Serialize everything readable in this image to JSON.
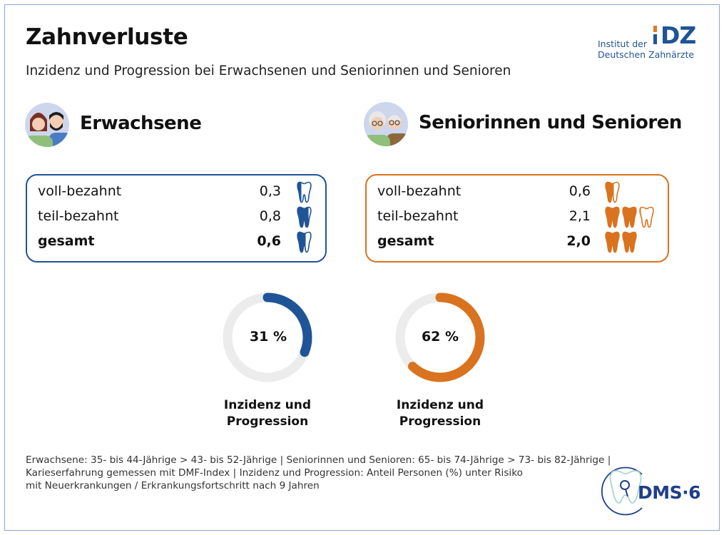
{
  "title": "Zahnverluste",
  "subtitle": "Inzidenz und Progression bei Erwachsenen und Seniorinnen und Senioren",
  "logo": {
    "line1": "Institut der",
    "line2": "Deutschen Zahnärzte",
    "mark": "IDZ"
  },
  "colors": {
    "adults": "#1f5497",
    "seniors": "#d9731f",
    "ring_bg": "#ececec"
  },
  "groups": [
    {
      "name": "Erwachsene",
      "avatar": "adults-avatar-icon",
      "rows": [
        {
          "label": "voll-bezahnt",
          "value": "0,3",
          "teeth": [
            0.3
          ]
        },
        {
          "label": "teil-bezahnt",
          "value": "0,8",
          "teeth": [
            0.8
          ]
        },
        {
          "label": "gesamt",
          "value": "0,6",
          "teeth": [
            0.6
          ],
          "bold": true
        }
      ],
      "percent": 31,
      "percent_label": "31 %",
      "ring_label_1": "Inzidenz und",
      "ring_label_2": "Progression"
    },
    {
      "name": "Seniorinnen und Senioren",
      "avatar": "seniors-avatar-icon",
      "rows": [
        {
          "label": "voll-bezahnt",
          "value": "0,6",
          "teeth": [
            0.6
          ]
        },
        {
          "label": "teil-bezahnt",
          "value": "2,1",
          "teeth": [
            1,
            1,
            0.1
          ]
        },
        {
          "label": "gesamt",
          "value": "2,0",
          "teeth": [
            1,
            1
          ],
          "bold": true
        }
      ],
      "percent": 62,
      "percent_label": "62 %",
      "ring_label_1": "Inzidenz und",
      "ring_label_2": "Progression"
    }
  ],
  "footnote": [
    "Erwachsene: 35- bis 44-Jährige > 43- bis 52-Jährige | Seniorinnen und Senioren: 65- bis 74-Jährige > 73- bis 82-Jährige |",
    "Karieserfahrung gemessen mit DMF-Index | Inzidenz und Progression: Anteil Personen (%) unter Risiko",
    "mit Neuerkrankungen / Erkrankungsfortschritt nach 9 Jahren"
  ],
  "dms_logo": "DMS·6"
}
